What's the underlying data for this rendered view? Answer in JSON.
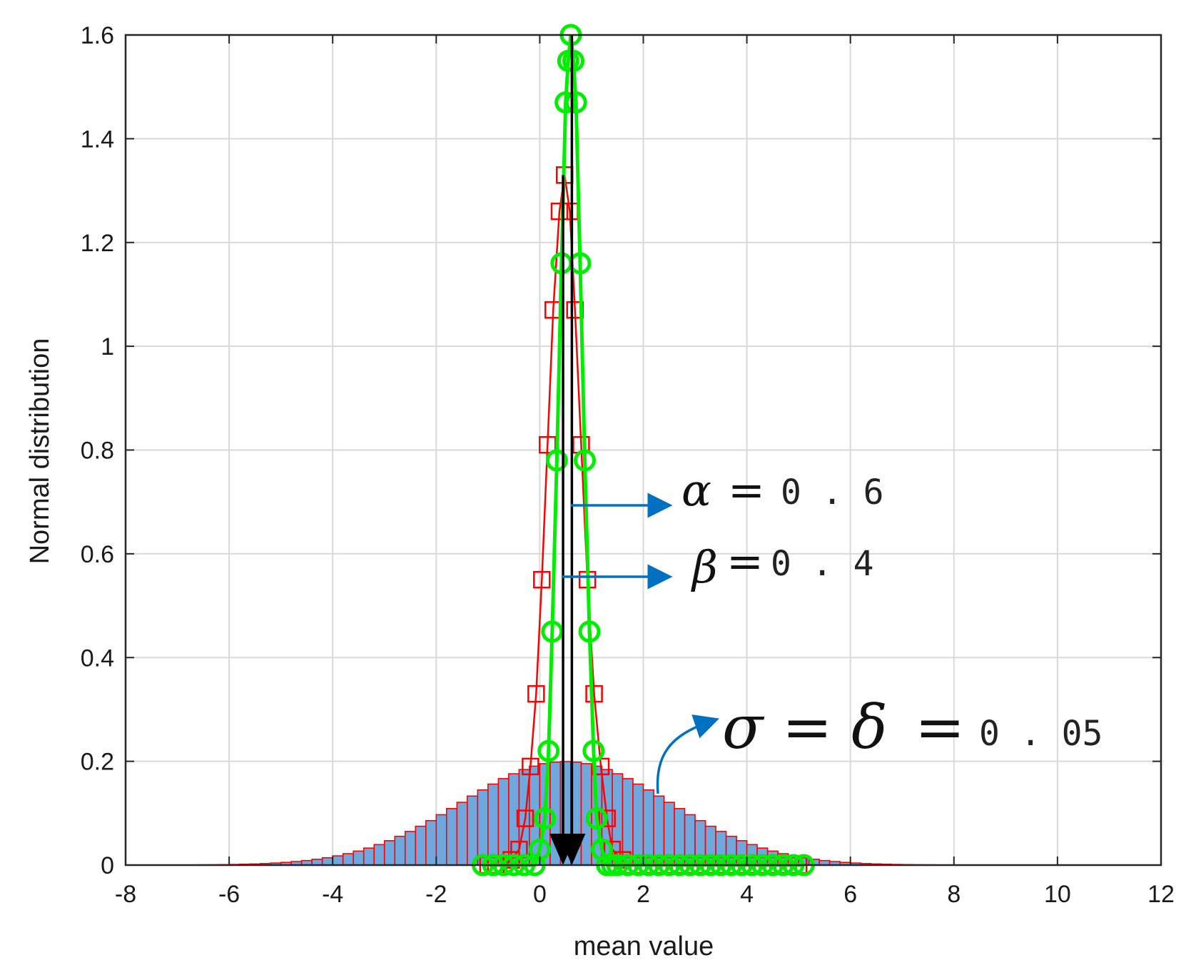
{
  "chart_data": {
    "type": "line",
    "xlabel": "mean value",
    "ylabel": "Normal distribution",
    "xlim": [
      -8,
      12
    ],
    "ylim": [
      0,
      1.6
    ],
    "x_ticks": [
      "-8",
      "-6",
      "-4",
      "-2",
      "0",
      "2",
      "4",
      "6",
      "8",
      "10",
      "12"
    ],
    "y_ticks": [
      "0",
      "0.2",
      "0.4",
      "0.6",
      "0.8",
      "1",
      "1.2",
      "1.4",
      "1.6"
    ],
    "grid": true,
    "histogram": {
      "mean": 0.5,
      "sigma": 2.0,
      "x_start": -7.6,
      "x_end": 10.2,
      "bin_width": 0.2,
      "fill_color": "#6fa8dc",
      "edge_color": "#ff0000"
    },
    "series": [
      {
        "color": "#ff0000",
        "marker": "square",
        "x": [
          -1.0,
          -0.85,
          -0.7,
          -0.55,
          -0.4,
          -0.28,
          -0.18,
          -0.07,
          0.04,
          0.15,
          0.26,
          0.38,
          0.48,
          0.58,
          0.68,
          0.8,
          0.92,
          1.05,
          1.18,
          1.3,
          1.4,
          1.6,
          1.8,
          2.0,
          2.2,
          2.4,
          2.6,
          2.8,
          3.0,
          3.2,
          3.4,
          3.6,
          3.8,
          4.0,
          4.2,
          4.4,
          4.6,
          4.8,
          5.0
        ],
        "y": [
          0.0,
          0.0,
          0.0,
          0.01,
          0.03,
          0.09,
          0.19,
          0.33,
          0.55,
          0.81,
          1.07,
          1.26,
          1.33,
          1.26,
          1.07,
          0.81,
          0.55,
          0.33,
          0.19,
          0.09,
          0.03,
          0.01,
          0.0,
          0.0,
          0.0,
          0.0,
          0.0,
          0.0,
          0.0,
          0.0,
          0.0,
          0.0,
          0.0,
          0.0,
          0.0,
          0.0,
          0.0,
          0.0,
          0.0
        ]
      },
      {
        "color": "#00ee00",
        "marker": "circle",
        "x": [
          -1.1,
          -0.9,
          -0.7,
          -0.5,
          -0.3,
          -0.1,
          0.0,
          0.1,
          0.17,
          0.24,
          0.33,
          0.42,
          0.5,
          0.55,
          0.6,
          0.65,
          0.7,
          0.78,
          0.87,
          0.96,
          1.04,
          1.1,
          1.2,
          1.3,
          1.4,
          1.5,
          1.7,
          1.9,
          2.1,
          2.3,
          2.5,
          2.7,
          2.9,
          3.1,
          3.3,
          3.5,
          3.7,
          3.9,
          4.1,
          4.3,
          4.5,
          4.7,
          4.9,
          5.1
        ],
        "y": [
          0.0,
          0.0,
          0.0,
          0.0,
          0.0,
          0.0,
          0.03,
          0.09,
          0.22,
          0.45,
          0.78,
          1.16,
          1.47,
          1.55,
          1.6,
          1.55,
          1.47,
          1.16,
          0.78,
          0.45,
          0.22,
          0.09,
          0.03,
          0.0,
          0.0,
          0.0,
          0.0,
          0.0,
          0.0,
          0.0,
          0.0,
          0.0,
          0.0,
          0.0,
          0.0,
          0.0,
          0.0,
          0.0,
          0.0,
          0.0,
          0.0,
          0.0,
          0.0,
          0.0
        ]
      }
    ],
    "vertical_arrows": [
      {
        "x": 0.45,
        "y_top": 1.33,
        "y_bottom": 0.0,
        "color": "#000000"
      },
      {
        "x": 0.62,
        "y_top": 1.6,
        "y_bottom": 0.0,
        "color": "#000000"
      }
    ],
    "annotations": [
      {
        "symbol": "α",
        "eq": "=",
        "value": "0 . 6",
        "color": "#0070c0"
      },
      {
        "symbol": "β",
        "eq": "=",
        "value": "0 . 4",
        "color": "#0070c0"
      },
      {
        "symbol": "σ = δ",
        "eq": "=",
        "value": "0 . 05",
        "color": "#0070c0"
      }
    ]
  }
}
